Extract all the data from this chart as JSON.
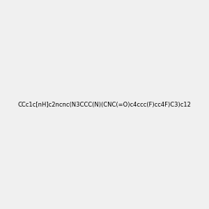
{
  "smiles": "CCc1c[nH]c2ncnc(N3CCC(N)(CNC(=O)c4ccc(F)cc4F)C3)c12",
  "title": "",
  "bg_color": "#f0f0f0",
  "fig_width": 3.0,
  "fig_height": 3.0,
  "dpi": 100
}
